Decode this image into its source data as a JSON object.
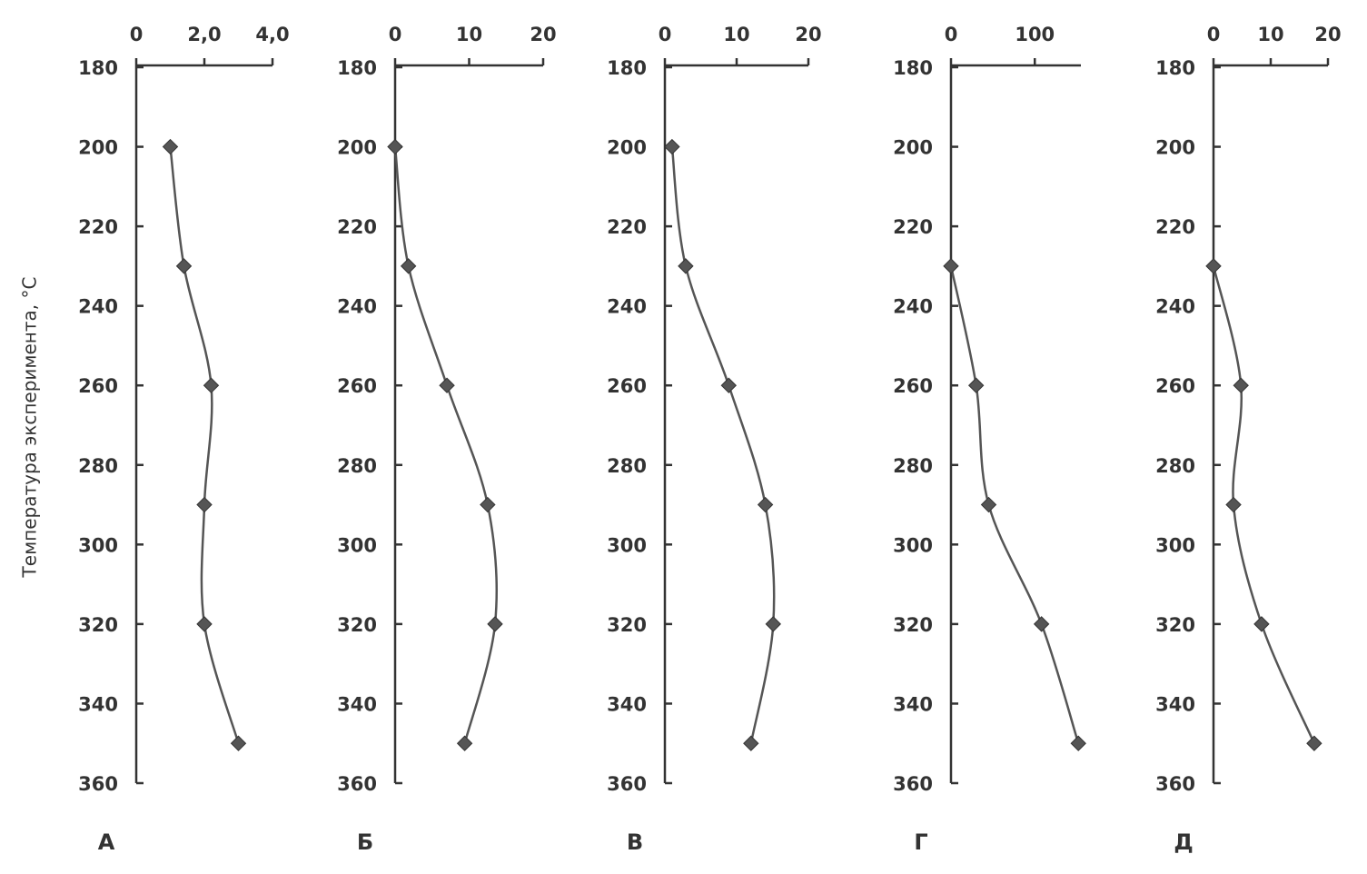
{
  "chart_data": [
    {
      "type": "line",
      "title": "А",
      "xlabel": "Температура эксперимента, °C",
      "color": "#555555",
      "x": [
        200,
        230,
        260,
        290,
        320,
        350
      ],
      "values": [
        1.0,
        1.4,
        2.2,
        2.0,
        2.0,
        3.0
      ],
      "xlim": [
        180,
        360
      ],
      "xticks": [
        180,
        200,
        220,
        240,
        260,
        280,
        300,
        320,
        340,
        360
      ],
      "ylim": [
        0,
        4
      ],
      "yticks": [
        0,
        {
          "value": 2,
          "label": "2,0"
        },
        {
          "value": 4,
          "label": "4,0"
        }
      ]
    },
    {
      "type": "line",
      "title": "Б",
      "color": "#555555",
      "x": [
        200,
        230,
        260,
        290,
        320,
        350
      ],
      "values": [
        0,
        1.8,
        7.0,
        12.5,
        13.5,
        9.4
      ],
      "xlim": [
        180,
        360
      ],
      "xticks": [
        180,
        200,
        220,
        240,
        260,
        280,
        300,
        320,
        340,
        360
      ],
      "ylim": [
        0,
        20
      ],
      "yticks": [
        0,
        10,
        20
      ]
    },
    {
      "type": "line",
      "title": "В",
      "color": "#555555",
      "x": [
        200,
        230,
        260,
        290,
        320,
        350
      ],
      "values": [
        1.0,
        2.9,
        8.9,
        14.0,
        15.1,
        12.0
      ],
      "xlim": [
        180,
        360
      ],
      "xticks": [
        180,
        200,
        220,
        240,
        260,
        280,
        300,
        320,
        340,
        360
      ],
      "ylim": [
        0,
        20
      ],
      "yticks": [
        0,
        10,
        20
      ]
    },
    {
      "type": "line",
      "title": "Г",
      "color": "#555555",
      "x": [
        230,
        260,
        290,
        320,
        350
      ],
      "values": [
        0,
        30,
        45,
        108,
        152
      ],
      "xlim": [
        180,
        360
      ],
      "xticks": [
        180,
        200,
        220,
        240,
        260,
        280,
        300,
        320,
        340,
        360
      ],
      "ylim": [
        0,
        155
      ],
      "yticks": [
        0,
        100
      ]
    },
    {
      "type": "line",
      "title": "Д",
      "color": "#555555",
      "x": [
        230,
        260,
        290,
        320,
        350
      ],
      "values": [
        0,
        4.8,
        3.5,
        8.4,
        17.6
      ],
      "xlim": [
        180,
        360
      ],
      "xticks": [
        180,
        200,
        220,
        240,
        260,
        280,
        300,
        320,
        340,
        360
      ],
      "ylim": [
        0,
        20
      ],
      "yticks": [
        0,
        10,
        20
      ]
    }
  ]
}
